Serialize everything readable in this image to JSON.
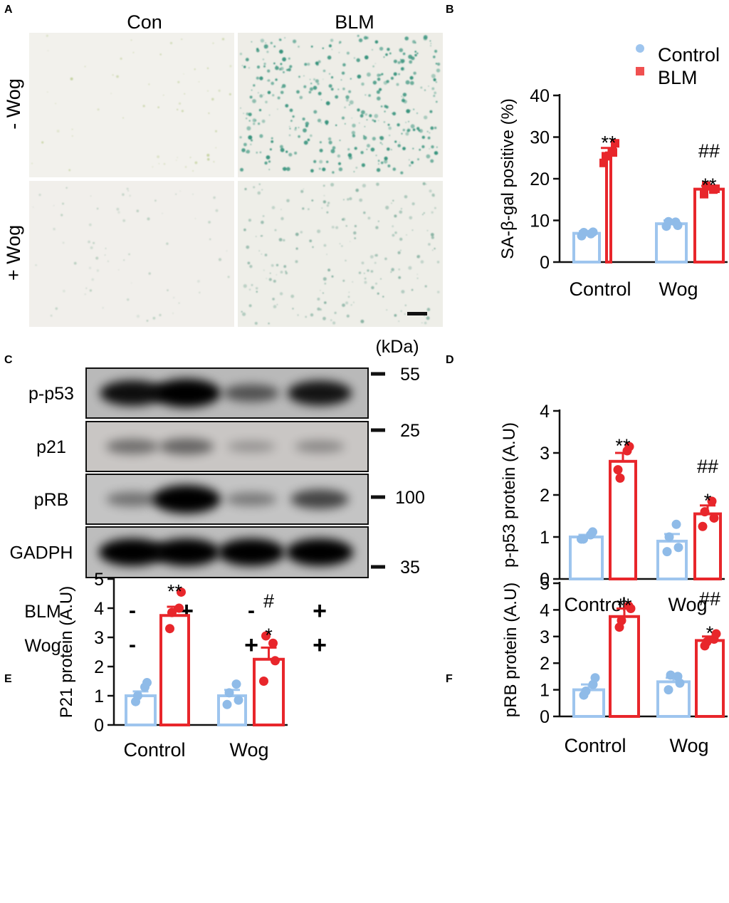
{
  "panels": {
    "a": {
      "letter": "A",
      "col_labels": [
        "Con",
        "BLM"
      ],
      "row_labels": [
        "- Wog",
        "+ Wog"
      ]
    },
    "c": {
      "letter": "C",
      "unit_label": "(kDa)",
      "bands": [
        {
          "name": "p-p53",
          "intensity": [
            0.85,
            1.0,
            0.45,
            0.82
          ]
        },
        {
          "name": "p21",
          "intensity": [
            0.32,
            0.38,
            0.12,
            0.18
          ]
        },
        {
          "name": "pRB",
          "intensity": [
            0.3,
            1.0,
            0.25,
            0.55
          ]
        },
        {
          "name": "GADPH",
          "intensity": [
            0.95,
            0.95,
            0.95,
            0.95
          ]
        }
      ],
      "markers": [
        "55",
        "25",
        "100",
        "35"
      ],
      "rows": [
        {
          "label": "BLM",
          "signs": [
            "-",
            "+",
            "-",
            "+"
          ]
        },
        {
          "label": "Wog",
          "signs": [
            "-",
            "-",
            "+",
            "+"
          ]
        }
      ]
    }
  },
  "colors": {
    "control": "#9ec5ee",
    "control_point": "#8fbbe8",
    "blm": "#e8262b",
    "blm_legend": "#f05050"
  },
  "chart_data": [
    {
      "panel": "B",
      "type": "bar",
      "ylabel": "SA-β-gal positive (%)",
      "ylim": [
        0,
        40
      ],
      "yticks": [
        0,
        10,
        20,
        30,
        40
      ],
      "categories": [
        "Control",
        "Wog"
      ],
      "legend": [
        "Control",
        "BLM"
      ],
      "legend_placement": "top-right",
      "series": [
        {
          "name": "Control",
          "values": [
            6.9,
            9.2
          ],
          "sem": [
            0.5,
            0.8
          ],
          "points": [
            [
              6.3,
              6.8,
              7.2,
              7.1
            ],
            [
              8.6,
              9.6,
              8.8,
              9.7
            ]
          ]
        },
        {
          "name": "BLM",
          "values": [
            26.2,
            17.5
          ],
          "sem": [
            1.2,
            0.8
          ],
          "points": [
            [
              23.8,
              26.3,
              28.5,
              25.4
            ],
            [
              16.3,
              17.4,
              17.6,
              18.3
            ]
          ]
        }
      ],
      "annotations": [
        {
          "category": 0,
          "series": 1,
          "lines": [
            "**"
          ]
        },
        {
          "category": 1,
          "series": 1,
          "lines": [
            "##",
            "**"
          ]
        }
      ]
    },
    {
      "panel": "D",
      "type": "bar",
      "ylabel": "p-p53 protein (A.U)",
      "ylim": [
        0,
        4
      ],
      "yticks": [
        0,
        1,
        2,
        3,
        4
      ],
      "categories": [
        "Control",
        "Wog"
      ],
      "series": [
        {
          "name": "Control",
          "values": [
            1.0,
            0.9
          ],
          "sem": [
            0.05,
            0.17
          ],
          "points": [
            [
              0.95,
              1.05,
              1.12,
              0.95
            ],
            [
              0.65,
              1.3,
              0.75,
              1.0
            ]
          ]
        },
        {
          "name": "BLM",
          "values": [
            2.8,
            1.55
          ],
          "sem": [
            0.2,
            0.2
          ],
          "points": [
            [
              2.6,
              3.05,
              3.15,
              2.4
            ],
            [
              1.25,
              1.85,
              1.45,
              1.6
            ]
          ]
        }
      ],
      "annotations": [
        {
          "category": 0,
          "series": 1,
          "lines": [
            "**"
          ]
        },
        {
          "category": 1,
          "series": 1,
          "lines": [
            "##",
            "*"
          ]
        }
      ]
    },
    {
      "panel": "E",
      "type": "bar",
      "ylabel": "P21 protein (A.U)",
      "ylim": [
        0,
        5
      ],
      "yticks": [
        0,
        1,
        2,
        3,
        4,
        5
      ],
      "categories": [
        "Control",
        "Wog"
      ],
      "series": [
        {
          "name": "Control",
          "values": [
            1.0,
            1.0
          ],
          "sem": [
            0.15,
            0.2
          ],
          "points": [
            [
              0.8,
              1.3,
              1.45,
              1.0
            ],
            [
              0.7,
              1.4,
              0.85,
              1.1
            ]
          ]
        },
        {
          "name": "BLM",
          "values": [
            3.75,
            2.25
          ],
          "sem": [
            0.3,
            0.4
          ],
          "points": [
            [
              3.3,
              4.0,
              4.55,
              3.85
            ],
            [
              1.5,
              2.8,
              2.2,
              3.05
            ]
          ]
        }
      ],
      "annotations": [
        {
          "category": 0,
          "series": 1,
          "lines": [
            "**"
          ]
        },
        {
          "category": 1,
          "series": 1,
          "lines": [
            "#",
            "*"
          ]
        }
      ]
    },
    {
      "panel": "F",
      "type": "bar",
      "ylabel": "pRB protein (A.U)",
      "ylim": [
        0,
        5
      ],
      "yticks": [
        0,
        1,
        2,
        3,
        4,
        5
      ],
      "categories": [
        "Control",
        "Wog"
      ],
      "series": [
        {
          "name": "Control",
          "values": [
            1.0,
            1.3
          ],
          "sem": [
            0.2,
            0.15
          ],
          "points": [
            [
              0.8,
              1.2,
              1.45,
              0.95
            ],
            [
              1.0,
              1.5,
              1.25,
              1.55
            ]
          ]
        },
        {
          "name": "BLM",
          "values": [
            3.75,
            2.85
          ],
          "sem": [
            0.3,
            0.15
          ],
          "points": [
            [
              3.35,
              4.15,
              4.05,
              3.6
            ],
            [
              2.65,
              2.9,
              3.1,
              2.8
            ]
          ]
        }
      ],
      "annotations": [
        {
          "category": 0,
          "series": 1,
          "lines": [
            "**"
          ]
        },
        {
          "category": 1,
          "series": 1,
          "lines": [
            "##",
            "*"
          ]
        }
      ]
    }
  ]
}
